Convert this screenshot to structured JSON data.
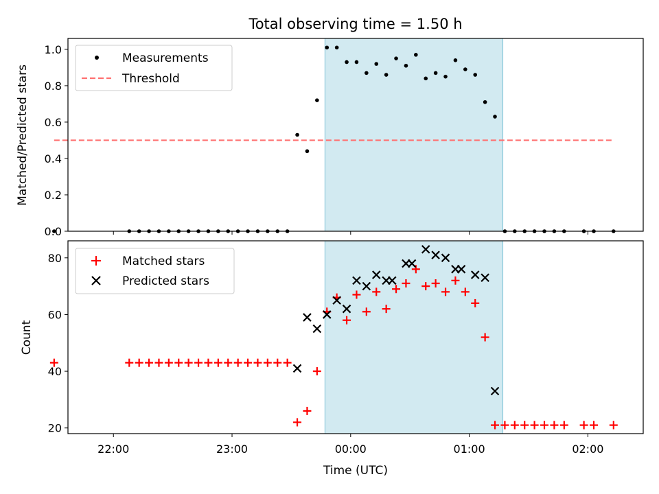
{
  "title": "Total observing time = 1.50 h",
  "colors": {
    "measurement": "#000000",
    "threshold": "#ff7070",
    "matched": "#ff0000",
    "predicted": "#000000",
    "observing_window": "#add8e6"
  },
  "chart_data": [
    {
      "type": "scatter",
      "panel": "top",
      "ylabel": "Matched/Predicted stars",
      "xlabel": "",
      "xlim": [
        "21:37",
        "02:28"
      ],
      "ylim": [
        0,
        1.06
      ],
      "yticks": [
        "0.0",
        "0.2",
        "0.4",
        "0.6",
        "0.8",
        "1.0"
      ],
      "grid": false,
      "legend_position": "top-left",
      "shaded_interval": [
        "23:47",
        "01:17"
      ],
      "series": [
        {
          "name": "Measurements",
          "marker": "dot",
          "points": [
            [
              "21:30",
              0
            ],
            [
              "22:08",
              0
            ],
            [
              "22:13",
              0
            ],
            [
              "22:18",
              0
            ],
            [
              "22:23",
              0
            ],
            [
              "22:28",
              0
            ],
            [
              "22:33",
              0
            ],
            [
              "22:38",
              0
            ],
            [
              "22:43",
              0
            ],
            [
              "22:48",
              0
            ],
            [
              "22:53",
              0
            ],
            [
              "22:58",
              0
            ],
            [
              "23:03",
              0
            ],
            [
              "23:08",
              0
            ],
            [
              "23:13",
              0
            ],
            [
              "23:18",
              0
            ],
            [
              "23:23",
              0
            ],
            [
              "23:28",
              0
            ],
            [
              "23:33",
              0.53
            ],
            [
              "23:38",
              0.44
            ],
            [
              "23:43",
              0.72
            ],
            [
              "23:48",
              1.01
            ],
            [
              "23:53",
              1.01
            ],
            [
              "23:58",
              0.93
            ],
            [
              "00:03",
              0.93
            ],
            [
              "00:08",
              0.87
            ],
            [
              "00:13",
              0.92
            ],
            [
              "00:18",
              0.86
            ],
            [
              "00:23",
              0.95
            ],
            [
              "00:28",
              0.91
            ],
            [
              "00:33",
              0.97
            ],
            [
              "00:38",
              0.84
            ],
            [
              "00:43",
              0.87
            ],
            [
              "00:48",
              0.85
            ],
            [
              "00:53",
              0.94
            ],
            [
              "00:58",
              0.89
            ],
            [
              "01:03",
              0.86
            ],
            [
              "01:08",
              0.71
            ],
            [
              "01:13",
              0.63
            ],
            [
              "01:18",
              0
            ],
            [
              "01:23",
              0
            ],
            [
              "01:28",
              0
            ],
            [
              "01:33",
              0
            ],
            [
              "01:38",
              0
            ],
            [
              "01:43",
              0
            ],
            [
              "01:48",
              0
            ],
            [
              "01:58",
              0
            ],
            [
              "02:03",
              0
            ],
            [
              "02:13",
              0
            ]
          ]
        },
        {
          "name": "Threshold",
          "marker": "dashed-line",
          "points": [
            [
              "21:30",
              0.5
            ],
            [
              "02:13",
              0.5
            ]
          ]
        }
      ]
    },
    {
      "type": "scatter",
      "panel": "bottom",
      "ylabel": "Count",
      "xlabel": "Time (UTC)",
      "xlim": [
        "21:37",
        "02:28"
      ],
      "ylim": [
        18,
        86
      ],
      "yticks": [
        "20",
        "40",
        "60",
        "80"
      ],
      "xticks": [
        "22:00",
        "23:00",
        "00:00",
        "01:00",
        "02:00"
      ],
      "grid": false,
      "legend_position": "top-left",
      "shaded_interval": [
        "23:47",
        "01:17"
      ],
      "series": [
        {
          "name": "Matched stars",
          "marker": "plus",
          "points": [
            [
              "21:30",
              43
            ],
            [
              "22:08",
              43
            ],
            [
              "22:13",
              43
            ],
            [
              "22:18",
              43
            ],
            [
              "22:23",
              43
            ],
            [
              "22:28",
              43
            ],
            [
              "22:33",
              43
            ],
            [
              "22:38",
              43
            ],
            [
              "22:43",
              43
            ],
            [
              "22:48",
              43
            ],
            [
              "22:53",
              43
            ],
            [
              "22:58",
              43
            ],
            [
              "23:03",
              43
            ],
            [
              "23:08",
              43
            ],
            [
              "23:13",
              43
            ],
            [
              "23:18",
              43
            ],
            [
              "23:23",
              43
            ],
            [
              "23:28",
              43
            ],
            [
              "23:33",
              22
            ],
            [
              "23:38",
              26
            ],
            [
              "23:43",
              40
            ],
            [
              "23:48",
              61
            ],
            [
              "23:53",
              66
            ],
            [
              "23:58",
              58
            ],
            [
              "00:03",
              67
            ],
            [
              "00:08",
              61
            ],
            [
              "00:13",
              68
            ],
            [
              "00:18",
              62
            ],
            [
              "00:23",
              69
            ],
            [
              "00:28",
              71
            ],
            [
              "00:33",
              76
            ],
            [
              "00:38",
              70
            ],
            [
              "00:43",
              71
            ],
            [
              "00:48",
              68
            ],
            [
              "00:53",
              72
            ],
            [
              "00:58",
              68
            ],
            [
              "01:03",
              64
            ],
            [
              "01:08",
              52
            ],
            [
              "01:13",
              21
            ],
            [
              "01:18",
              21
            ],
            [
              "01:23",
              21
            ],
            [
              "01:28",
              21
            ],
            [
              "01:33",
              21
            ],
            [
              "01:38",
              21
            ],
            [
              "01:43",
              21
            ],
            [
              "01:48",
              21
            ],
            [
              "01:58",
              21
            ],
            [
              "02:03",
              21
            ],
            [
              "02:13",
              21
            ]
          ]
        },
        {
          "name": "Predicted stars",
          "marker": "x",
          "points": [
            [
              "23:33",
              41
            ],
            [
              "23:38",
              59
            ],
            [
              "23:43",
              55
            ],
            [
              "23:48",
              60
            ],
            [
              "23:53",
              65
            ],
            [
              "23:58",
              62
            ],
            [
              "00:03",
              72
            ],
            [
              "00:08",
              70
            ],
            [
              "00:13",
              74
            ],
            [
              "00:18",
              72
            ],
            [
              "00:21",
              72
            ],
            [
              "00:28",
              78
            ],
            [
              "00:31",
              78
            ],
            [
              "00:38",
              83
            ],
            [
              "00:43",
              81
            ],
            [
              "00:48",
              80
            ],
            [
              "00:53",
              76
            ],
            [
              "00:56",
              76
            ],
            [
              "01:03",
              74
            ],
            [
              "01:08",
              73
            ],
            [
              "01:13",
              33
            ]
          ]
        }
      ]
    }
  ]
}
